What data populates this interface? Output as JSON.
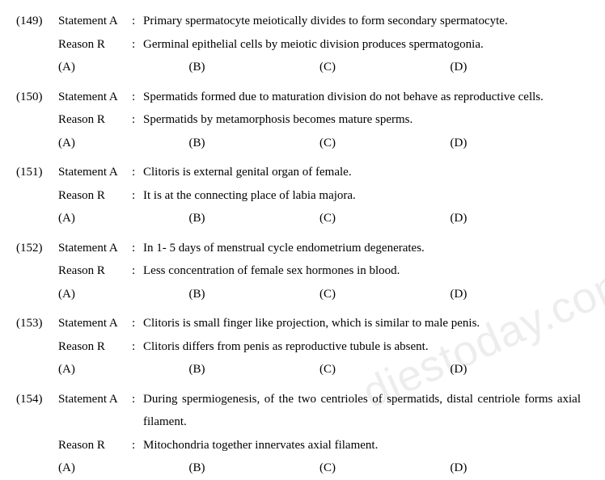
{
  "watermark": "diestoday.com",
  "opt_labels": {
    "a": "(A)",
    "b": "(B)",
    "c": "(C)",
    "d": "(D)"
  },
  "labels": {
    "statement": "Statement A",
    "reason": "Reason R",
    "colon": ":"
  },
  "questions": [
    {
      "num": "(149)",
      "statement": "Primary spermatocyte meiotically divides to form secondary spermatocyte.",
      "reason": "Germinal epithelial cells by meiotic division produces spermatogonia."
    },
    {
      "num": "(150)",
      "statement": "Spermatids formed due to maturation division do not behave as reproductive cells.",
      "reason": "Spermatids by metamorphosis becomes mature sperms."
    },
    {
      "num": "(151)",
      "statement": "Clitoris is external genital organ of female.",
      "reason": "It is at the connecting place of labia majora."
    },
    {
      "num": "(152)",
      "statement": "In 1- 5 days of menstrual cycle endometrium degenerates.",
      "reason": "Less concentration of female sex hormones in blood."
    },
    {
      "num": "(153)",
      "statement": "Clitoris is small finger like projection, which is similar to male penis.",
      "reason": "Clitoris differs from penis as reproductive tubule is absent."
    },
    {
      "num": "(154)",
      "statement": "During spermiogenesis, of the two centrioles of spermatids, distal centriole forms axial filament.",
      "reason": "Mitochondria together innervates axial filament."
    }
  ]
}
